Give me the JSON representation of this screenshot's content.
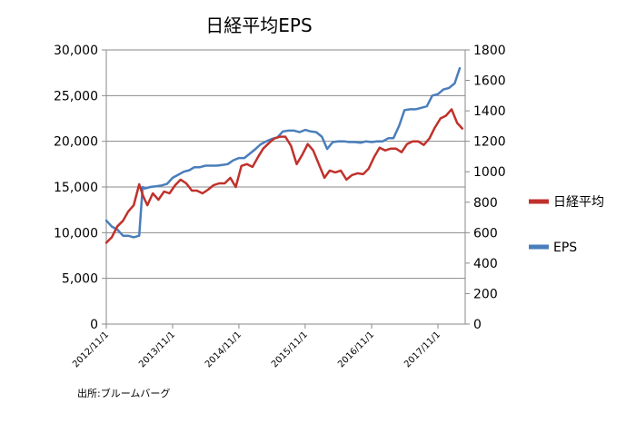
{
  "chart_data": {
    "type": "line",
    "title": "日経平均EPS",
    "source_note": "出所:ブルームバーグ",
    "legend_position": "right",
    "grid": true,
    "x_ticks": [
      "2012/11/1",
      "2013/11/1",
      "2014/11/1",
      "2015/11/1",
      "2016/11/1",
      "2017/11/1"
    ],
    "y_left_ticks": [
      "30,000",
      "25,000",
      "20,000",
      "15,000",
      "10,000",
      "5,000",
      "0"
    ],
    "y_right_ticks": [
      "1800",
      "1600",
      "1400",
      "1200",
      "1000",
      "800",
      "600",
      "400",
      "200",
      "0"
    ],
    "ylim_left": [
      0,
      30000
    ],
    "ylim_right": [
      0,
      1800
    ],
    "xlim": [
      "2012-11-01",
      "2018-03-31"
    ],
    "series": [
      {
        "name": "日経平均",
        "axis": "left",
        "color": "#c0312b",
        "x": [
          "2012-11-01",
          "2012-12-01",
          "2013-01-01",
          "2013-02-01",
          "2013-03-01",
          "2013-04-01",
          "2013-05-01",
          "2013-05-23",
          "2013-06-15",
          "2013-07-15",
          "2013-08-15",
          "2013-09-15",
          "2013-10-15",
          "2013-11-15",
          "2013-12-15",
          "2014-01-15",
          "2014-02-15",
          "2014-03-15",
          "2014-04-15",
          "2014-05-15",
          "2014-06-15",
          "2014-07-15",
          "2014-08-15",
          "2014-09-15",
          "2014-10-15",
          "2014-11-15",
          "2014-12-15",
          "2015-01-15",
          "2015-02-15",
          "2015-03-15",
          "2015-04-15",
          "2015-05-15",
          "2015-06-15",
          "2015-07-15",
          "2015-08-15",
          "2015-09-15",
          "2015-10-15",
          "2015-11-15",
          "2015-12-15",
          "2016-01-15",
          "2016-02-15",
          "2016-03-15",
          "2016-04-15",
          "2016-05-15",
          "2016-06-15",
          "2016-07-15",
          "2016-08-15",
          "2016-09-15",
          "2016-10-15",
          "2016-11-15",
          "2016-12-15",
          "2017-01-15",
          "2017-02-15",
          "2017-03-15",
          "2017-04-15",
          "2017-05-15",
          "2017-06-15",
          "2017-07-15",
          "2017-08-15",
          "2017-09-15",
          "2017-10-15",
          "2017-11-15",
          "2017-12-15",
          "2018-01-15",
          "2018-02-15",
          "2018-03-15"
        ],
        "values": [
          8900,
          9500,
          10700,
          11300,
          12300,
          13000,
          15300,
          14000,
          13000,
          14300,
          13600,
          14500,
          14300,
          15200,
          15800,
          15400,
          14600,
          14600,
          14300,
          14700,
          15200,
          15400,
          15400,
          16000,
          15000,
          17300,
          17500,
          17200,
          18300,
          19200,
          19800,
          20300,
          20500,
          20500,
          19500,
          17500,
          18500,
          19700,
          19000,
          17500,
          16000,
          16800,
          16600,
          16800,
          15800,
          16300,
          16500,
          16400,
          17000,
          18300,
          19300,
          19000,
          19200,
          19200,
          18800,
          19700,
          20000,
          20000,
          19600,
          20300,
          21500,
          22500,
          22800,
          23500,
          22000,
          21400
        ]
      },
      {
        "name": "EPS",
        "axis": "right",
        "color": "#4a7ebb",
        "x": [
          "2012-11-01",
          "2012-12-01",
          "2013-01-01",
          "2013-02-01",
          "2013-03-01",
          "2013-04-01",
          "2013-05-01",
          "2013-05-20",
          "2013-06-01",
          "2013-07-01",
          "2013-08-01",
          "2013-09-01",
          "2013-10-01",
          "2013-11-01",
          "2013-12-01",
          "2014-01-01",
          "2014-02-01",
          "2014-03-01",
          "2014-04-01",
          "2014-05-01",
          "2014-06-01",
          "2014-07-01",
          "2014-08-01",
          "2014-09-01",
          "2014-10-01",
          "2014-11-01",
          "2014-12-01",
          "2015-01-01",
          "2015-02-01",
          "2015-03-01",
          "2015-04-01",
          "2015-05-01",
          "2015-06-01",
          "2015-07-01",
          "2015-08-01",
          "2015-09-01",
          "2015-10-01",
          "2015-11-01",
          "2015-12-01",
          "2016-01-01",
          "2016-02-01",
          "2016-03-01",
          "2016-04-01",
          "2016-05-01",
          "2016-06-01",
          "2016-07-01",
          "2016-08-01",
          "2016-09-01",
          "2016-10-01",
          "2016-11-01",
          "2016-12-01",
          "2017-01-01",
          "2017-02-01",
          "2017-03-01",
          "2017-04-01",
          "2017-05-01",
          "2017-06-01",
          "2017-07-01",
          "2017-08-01",
          "2017-09-01",
          "2017-10-01",
          "2017-11-01",
          "2017-12-01",
          "2018-01-01",
          "2018-02-01",
          "2018-03-01"
        ],
        "values": [
          680,
          640,
          620,
          580,
          580,
          570,
          580,
          900,
          890,
          900,
          905,
          910,
          920,
          960,
          980,
          1000,
          1010,
          1030,
          1030,
          1040,
          1040,
          1040,
          1045,
          1050,
          1075,
          1090,
          1090,
          1120,
          1150,
          1180,
          1200,
          1215,
          1225,
          1265,
          1270,
          1270,
          1260,
          1275,
          1265,
          1260,
          1230,
          1150,
          1195,
          1200,
          1200,
          1195,
          1195,
          1190,
          1200,
          1195,
          1200,
          1200,
          1220,
          1220,
          1300,
          1405,
          1410,
          1410,
          1420,
          1430,
          1500,
          1510,
          1540,
          1550,
          1580,
          1680
        ]
      }
    ]
  }
}
